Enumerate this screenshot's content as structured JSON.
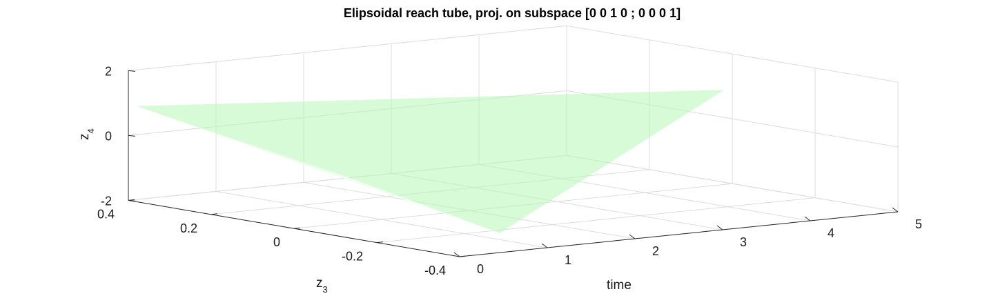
{
  "title": "Elipsoidal reach tube, proj. on subspace [0 0 1 0 ; 0 0 0 1]",
  "chart_data": {
    "type": "surface3d",
    "title": "Elipsoidal reach tube, proj. on subspace [0 0 1 0 ; 0 0 0 1]",
    "xlabel": "time",
    "ylabel_main": "z",
    "ylabel_sub": "3",
    "zlabel_main": "z",
    "zlabel_sub": "4",
    "xlim": [
      0,
      5
    ],
    "ylim": [
      -0.4,
      0.4
    ],
    "zlim": [
      -2,
      2
    ],
    "x_ticks": [
      0,
      1,
      2,
      3,
      4,
      5
    ],
    "x_tick_labels": [
      "0",
      "1",
      "2",
      "3",
      "4",
      "5"
    ],
    "y_ticks": [
      0.4,
      0.2,
      0,
      -0.2,
      -0.4
    ],
    "y_tick_labels": [
      "0.4",
      "0.2",
      "0",
      "-0.2",
      "-0.4"
    ],
    "z_ticks": [
      2,
      0,
      -2
    ],
    "z_tick_labels": [
      "2",
      "0",
      "-2"
    ],
    "grid": true,
    "surface": {
      "color": "#b6f5b6",
      "opacity": 0.55,
      "vertices": {
        "apex": {
          "t": 0.0,
          "z3": 0.38,
          "z4": 0.95
        },
        "far": {
          "t": 5.0,
          "z3": 0.02,
          "z4": 0.85
        },
        "low": {
          "t": 0.6,
          "z3": -0.37,
          "z4": 1.0
        }
      }
    }
  }
}
